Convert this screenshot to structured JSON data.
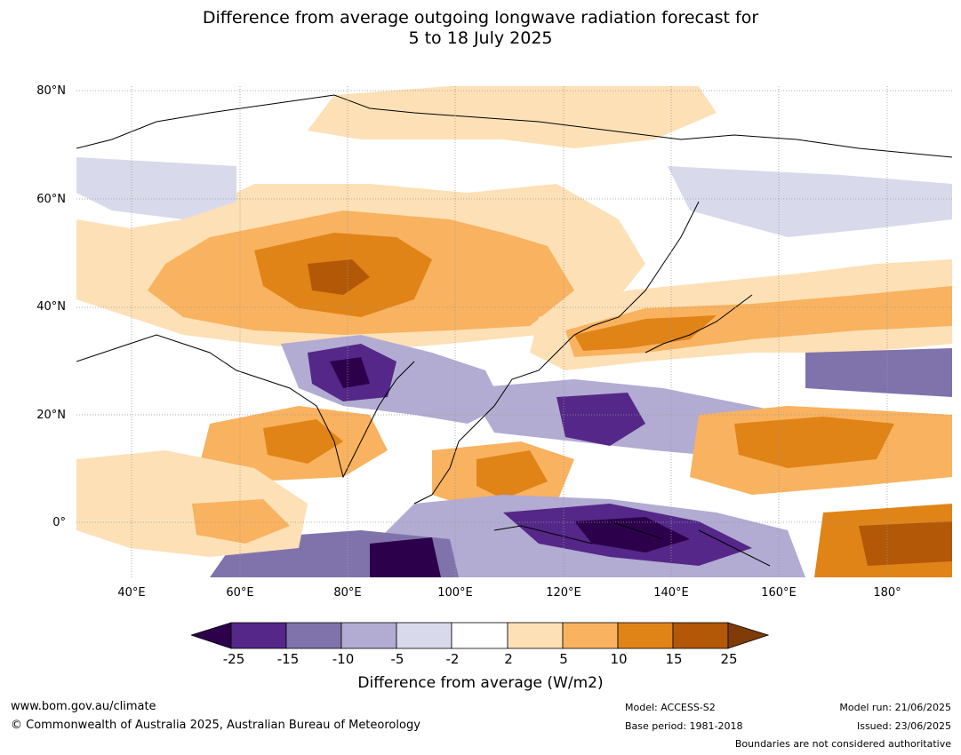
{
  "title": {
    "line1": "Difference from average outgoing longwave radiation forecast for",
    "line2": "5 to 18 July 2025"
  },
  "map": {
    "lat_labels": [
      "80°N",
      "60°N",
      "40°N",
      "20°N",
      "0°"
    ],
    "lon_labels": [
      "40°E",
      "60°E",
      "80°E",
      "100°E",
      "120°E",
      "140°E",
      "160°E",
      "180°"
    ],
    "colors": {
      "ocean_land_neutral": "#ffffff",
      "pos_2_5": "#fde0b6",
      "pos_5_10": "#f9b25f",
      "pos_10_15": "#e08418",
      "pos_15_25": "#b35807",
      "pos_gt_25": "#7f3b08",
      "neg_5_2": "#d8daeb",
      "neg_10_5": "#b2abd2",
      "neg_15_10": "#8073ac",
      "neg_25_15": "#542788",
      "neg_lt_25": "#2d004b",
      "coastline": "#000000",
      "boundary": "#808080"
    }
  },
  "colorbar": {
    "ticks": [
      "-25",
      "-15",
      "-10",
      "-5",
      "-2",
      "2",
      "5",
      "10",
      "15",
      "25"
    ],
    "colors": [
      "#2d004b",
      "#542788",
      "#8073ac",
      "#b2abd2",
      "#d8daeb",
      "#ffffff",
      "#fde0b6",
      "#f9b25f",
      "#e08418",
      "#b35807",
      "#7f3b08"
    ],
    "label": "Difference from average (W/m2)"
  },
  "footer": {
    "website": "www.bom.gov.au/climate",
    "copyright": "© Commonwealth of Australia 2025, Australian Bureau of Meteorology",
    "model": "Model: ACCESS-S2",
    "base_period": "Base period: 1981-2018",
    "model_run": "Model run: 21/06/2025",
    "issued": "Issued: 23/06/2025",
    "boundaries_note": "Boundaries are not considered authoritative"
  }
}
